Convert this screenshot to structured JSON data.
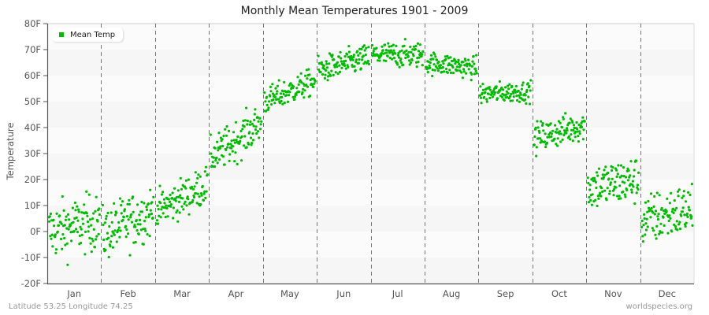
{
  "header": {
    "title": "Monthly Mean Temperatures 1901 - 2009"
  },
  "legend": {
    "label": "Mean Temp",
    "color": "#00bb00"
  },
  "footer": {
    "location": "Latitude 53.25 Longitude 74.25",
    "source": "worldspecies.org"
  },
  "chart_data": {
    "type": "scatter",
    "title": "Monthly Mean Temperatures 1901 - 2009",
    "xlabel": "",
    "ylabel": "Temperature",
    "ylim": [
      -20,
      80
    ],
    "yticks": [
      "-20F",
      "-10F",
      "0F",
      "10F",
      "20F",
      "30F",
      "40F",
      "50F",
      "60F",
      "70F",
      "80F"
    ],
    "categories": [
      "Jan",
      "Feb",
      "Mar",
      "Apr",
      "May",
      "Jun",
      "Jul",
      "Aug",
      "Sep",
      "Oct",
      "Nov",
      "Dec"
    ],
    "grid": {
      "horizontal_bands": true,
      "vertical_dashed_month_separators": true
    },
    "legend_position": "top-left",
    "series": [
      {
        "name": "Mean Temp",
        "color": "#00bb00",
        "points_per_month": 109,
        "monthly_summary": [
          {
            "month": "Jan",
            "mean": 1,
            "min": -16,
            "max": 20,
            "start": 0,
            "end": 4
          },
          {
            "month": "Feb",
            "mean": 2,
            "min": -15,
            "max": 19,
            "start": -1,
            "end": 8
          },
          {
            "month": "Mar",
            "mean": 13,
            "min": 3,
            "max": 27,
            "start": 8,
            "end": 18
          },
          {
            "month": "Apr",
            "mean": 36,
            "min": 25,
            "max": 50,
            "start": 28,
            "end": 42
          },
          {
            "month": "May",
            "mean": 54,
            "min": 46,
            "max": 63,
            "start": 50,
            "end": 58
          },
          {
            "month": "Jun",
            "mean": 65,
            "min": 55,
            "max": 72,
            "start": 62,
            "end": 67
          },
          {
            "month": "Jul",
            "mean": 68,
            "min": 60,
            "max": 76,
            "start": 68,
            "end": 68
          },
          {
            "month": "Aug",
            "mean": 64,
            "min": 57,
            "max": 71,
            "start": 65,
            "end": 63
          },
          {
            "month": "Sep",
            "mean": 53,
            "min": 46,
            "max": 59,
            "start": 53,
            "end": 54
          },
          {
            "month": "Oct",
            "mean": 38,
            "min": 28,
            "max": 47,
            "start": 36,
            "end": 41
          },
          {
            "month": "Nov",
            "mean": 17,
            "min": 0,
            "max": 30,
            "start": 17,
            "end": 20
          },
          {
            "month": "Dec",
            "mean": 5,
            "min": -12,
            "max": 21,
            "start": 4,
            "end": 9
          }
        ]
      }
    ]
  },
  "plot_style": {
    "band_light": "#f6f6f6",
    "band_white": "#fbfbfb",
    "axis_color": "#555555",
    "separator_color": "#777777"
  }
}
